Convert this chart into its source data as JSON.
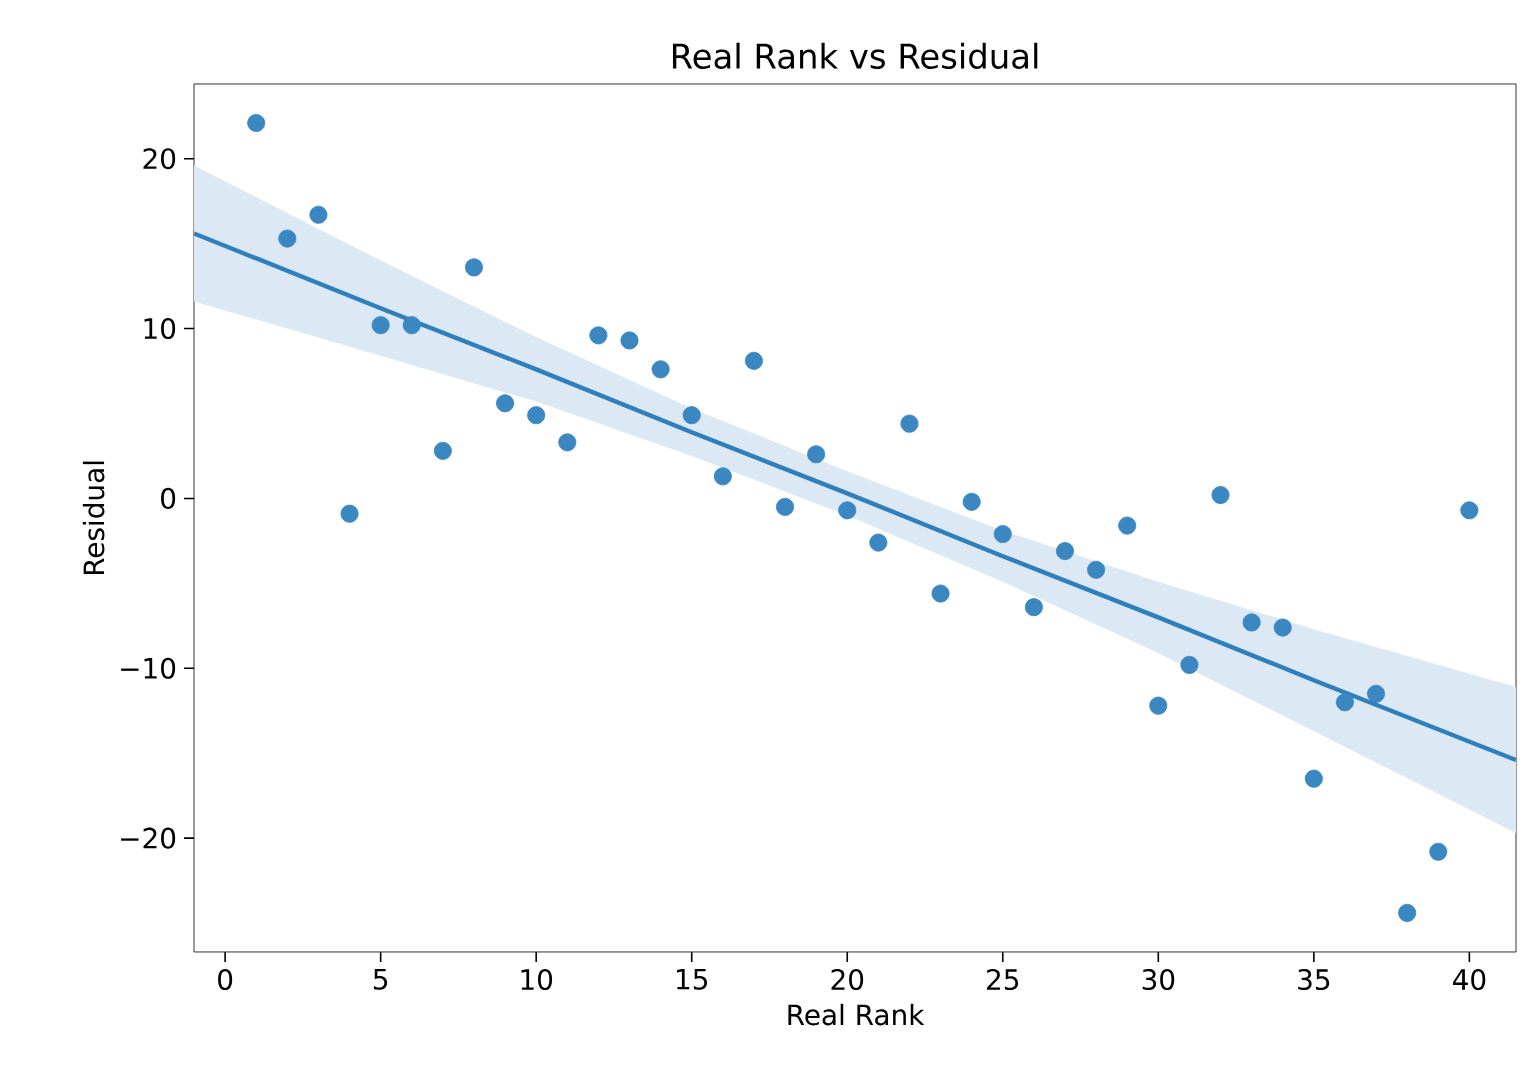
{
  "chart_data": {
    "type": "scatter",
    "title": "Real Rank vs Residual",
    "xlabel": "Real Rank",
    "ylabel": "Residual",
    "xlim": [
      -1,
      41.5
    ],
    "ylim": [
      -26.7,
      24.4
    ],
    "xticks": [
      0,
      5,
      10,
      15,
      20,
      25,
      30,
      35,
      40
    ],
    "yticks": [
      {
        "value": -20,
        "label": "−20"
      },
      {
        "value": -10,
        "label": "−10"
      },
      0,
      10,
      20
    ],
    "grid": false,
    "series": [
      {
        "color": "#3a87c1",
        "marker": "circle",
        "x": [
          1,
          2,
          3,
          4,
          5,
          6,
          7,
          8,
          9,
          10,
          11,
          12,
          13,
          14,
          15,
          16,
          17,
          18,
          19,
          20,
          21,
          22,
          23,
          24,
          25,
          26,
          27,
          28,
          29,
          30,
          31,
          32,
          33,
          34,
          35,
          36,
          37,
          38,
          39,
          40
        ],
        "values": [
          22.1,
          15.3,
          16.7,
          -0.9,
          10.2,
          10.2,
          2.8,
          13.6,
          5.6,
          4.9,
          3.3,
          9.6,
          9.3,
          7.6,
          4.9,
          1.3,
          8.1,
          -0.5,
          2.6,
          -0.7,
          -2.6,
          4.4,
          -5.6,
          -0.2,
          -2.1,
          -6.4,
          -3.1,
          -4.2,
          -1.6,
          -12.2,
          -9.8,
          0.2,
          -7.3,
          -7.6,
          -16.5,
          -12.0,
          -11.5,
          -24.4,
          -20.8,
          -0.7
        ]
      },
      {
        "type": "line",
        "color": "#2f7fbc",
        "marker": "none",
        "x": [
          -1,
          5,
          10,
          15,
          20,
          25,
          30,
          35,
          41.5
        ],
        "values": [
          15.6,
          11.2,
          7.6,
          3.9,
          0.3,
          -3.4,
          -7.0,
          -10.7,
          -15.4
        ],
        "lower": [
          11.6,
          8.4,
          5.7,
          2.5,
          -1.0,
          -4.9,
          -9.1,
          -13.7,
          -19.7
        ],
        "upper": [
          19.6,
          14.0,
          9.5,
          5.3,
          1.6,
          -1.9,
          -4.9,
          -7.7,
          -11.1
        ]
      }
    ]
  }
}
